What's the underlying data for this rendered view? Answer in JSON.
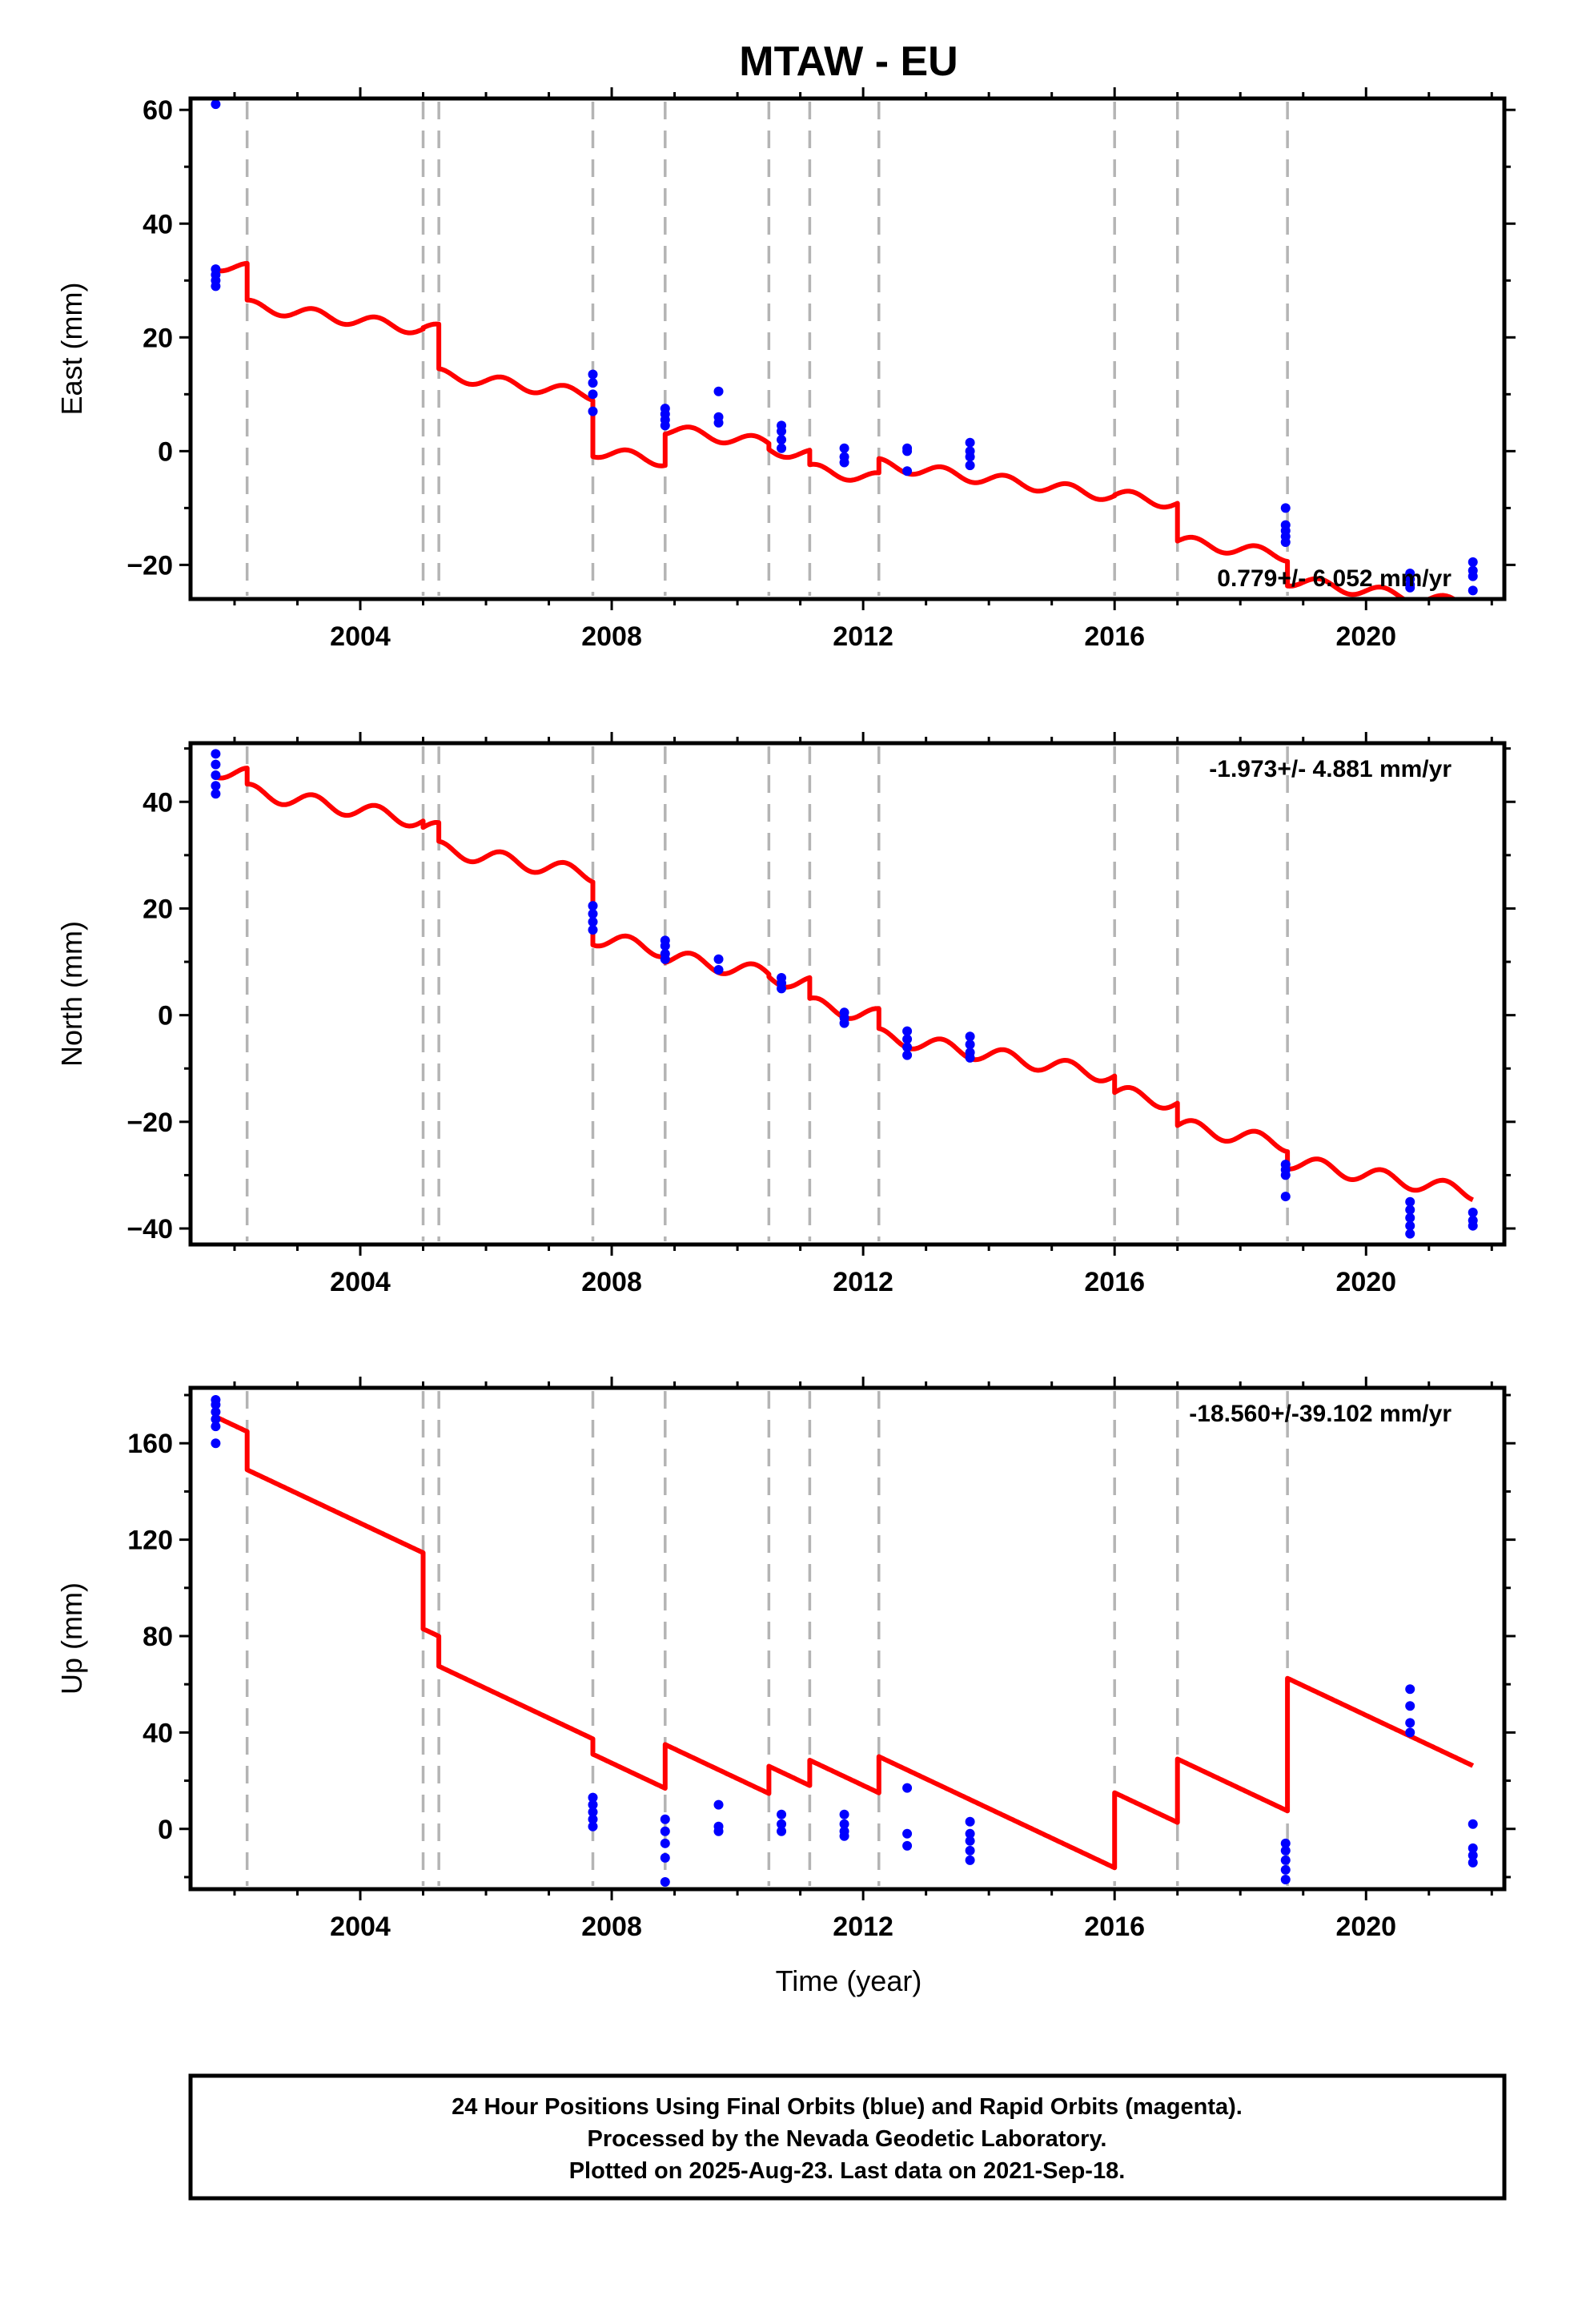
{
  "title": "MTAW - EU",
  "xlabel": "Time (year)",
  "footer": {
    "line1": "24 Hour Positions Using Final Orbits (blue) and Rapid Orbits (magenta).",
    "line2": "Processed by the Nevada Geodetic Laboratory.",
    "line3": "Plotted on 2025-Aug-23. Last data on 2021-Sep-18."
  },
  "colors": {
    "model": "#ff0000",
    "final_orbits": "#0000ff",
    "rapid_orbits": "#ff00ff",
    "breaks": "#b4b4b4"
  },
  "chart_data": [
    {
      "type": "scatter",
      "component": "east",
      "ylabel": "East (mm)",
      "rate": "0.779+/- 6.052 mm/yr",
      "rate_position": "bottom-right",
      "xlim": [
        2001.3,
        2022.2
      ],
      "ylim": [
        -26,
        62
      ],
      "xticks": [
        2004,
        2008,
        2012,
        2016,
        2020
      ],
      "yticks": [
        -20,
        0,
        20,
        40,
        60
      ],
      "ytick_labels": [
        "−20",
        "0",
        "20",
        "40",
        "60"
      ],
      "xtick_labels": [
        "2004",
        "2008",
        "2012",
        "2016",
        "2020"
      ],
      "breaks": [
        2002.2,
        2005.0,
        2005.25,
        2007.7,
        2008.85,
        2010.5,
        2011.15,
        2012.25,
        2016.0,
        2017.0,
        2018.75
      ],
      "points": [
        [
          2001.7,
          61
        ],
        [
          2001.7,
          32
        ],
        [
          2001.7,
          31
        ],
        [
          2001.7,
          30
        ],
        [
          2001.7,
          29
        ],
        [
          2007.7,
          13.5
        ],
        [
          2007.7,
          12
        ],
        [
          2007.7,
          10
        ],
        [
          2007.7,
          7
        ],
        [
          2008.85,
          7.5
        ],
        [
          2008.85,
          6.5
        ],
        [
          2008.85,
          5.5
        ],
        [
          2008.85,
          4.5
        ],
        [
          2009.7,
          10.5
        ],
        [
          2009.7,
          6
        ],
        [
          2009.7,
          5
        ],
        [
          2010.7,
          4.5
        ],
        [
          2010.7,
          3.5
        ],
        [
          2010.7,
          2
        ],
        [
          2010.7,
          0.5
        ],
        [
          2011.7,
          0.5
        ],
        [
          2011.7,
          -1
        ],
        [
          2011.7,
          -2
        ],
        [
          2012.7,
          0.5
        ],
        [
          2012.7,
          0
        ],
        [
          2012.7,
          -3.5
        ],
        [
          2013.7,
          1.5
        ],
        [
          2013.7,
          0
        ],
        [
          2013.7,
          -1
        ],
        [
          2013.7,
          -2.5
        ],
        [
          2018.72,
          -10
        ],
        [
          2018.72,
          -13
        ],
        [
          2018.72,
          -14
        ],
        [
          2018.72,
          -15
        ],
        [
          2018.72,
          -16
        ],
        [
          2020.7,
          -21.5
        ],
        [
          2020.7,
          -22.5
        ],
        [
          2020.7,
          -23.5
        ],
        [
          2020.7,
          -24
        ],
        [
          2021.7,
          -19.5
        ],
        [
          2021.7,
          -21
        ],
        [
          2021.7,
          -22
        ],
        [
          2021.7,
          -24.5
        ]
      ],
      "model": {
        "offsets": [
          32.8,
          25.6,
          21.7,
          13.5,
          0.0,
          3.8,
          0.3,
          -3.2,
          -2.3,
          -7.7,
          -15.8,
          -22.7
        ],
        "trend": -1.48,
        "seasonal_amp": 1.0
      }
    },
    {
      "type": "scatter",
      "component": "north",
      "ylabel": "North (mm)",
      "rate": "-1.973+/- 4.881 mm/yr",
      "rate_position": "top-right",
      "xlim": [
        2001.3,
        2022.2
      ],
      "ylim": [
        -43,
        51
      ],
      "xticks": [
        2004,
        2008,
        2012,
        2016,
        2020
      ],
      "yticks": [
        -40,
        -20,
        0,
        20,
        40
      ],
      "ytick_labels": [
        "−40",
        "−20",
        "0",
        "20",
        "40"
      ],
      "xtick_labels": [
        "2004",
        "2008",
        "2012",
        "2016",
        "2020"
      ],
      "breaks": [
        2002.2,
        2005.0,
        2005.25,
        2007.7,
        2008.85,
        2010.5,
        2011.15,
        2012.25,
        2016.0,
        2017.0,
        2018.75
      ],
      "points": [
        [
          2001.7,
          49
        ],
        [
          2001.7,
          47
        ],
        [
          2001.7,
          45
        ],
        [
          2001.7,
          43
        ],
        [
          2001.7,
          41.5
        ],
        [
          2007.7,
          20.5
        ],
        [
          2007.7,
          19
        ],
        [
          2007.7,
          17.5
        ],
        [
          2007.7,
          16
        ],
        [
          2008.85,
          14
        ],
        [
          2008.85,
          13
        ],
        [
          2008.85,
          11.5
        ],
        [
          2008.85,
          10.5
        ],
        [
          2009.7,
          10.5
        ],
        [
          2009.7,
          8.5
        ],
        [
          2010.7,
          7
        ],
        [
          2010.7,
          6
        ],
        [
          2010.7,
          5
        ],
        [
          2011.7,
          0.5
        ],
        [
          2011.7,
          -0.5
        ],
        [
          2011.7,
          -1.5
        ],
        [
          2012.7,
          -3
        ],
        [
          2012.7,
          -4.5
        ],
        [
          2012.7,
          -6
        ],
        [
          2012.7,
          -7.5
        ],
        [
          2013.7,
          -4
        ],
        [
          2013.7,
          -5.5
        ],
        [
          2013.7,
          -7
        ],
        [
          2013.7,
          -8
        ],
        [
          2018.72,
          -28
        ],
        [
          2018.72,
          -29
        ],
        [
          2018.72,
          -30
        ],
        [
          2018.72,
          -34
        ],
        [
          2020.7,
          -35
        ],
        [
          2020.7,
          -36.5
        ],
        [
          2020.7,
          -38
        ],
        [
          2020.7,
          -39.5
        ],
        [
          2020.7,
          -41
        ],
        [
          2021.7,
          -37
        ],
        [
          2021.7,
          -38.5
        ],
        [
          2021.7,
          -39.5
        ]
      ],
      "model": {
        "offsets": [
          46.0,
          42.0,
          35.2,
          31.2,
          14.5,
          11.0,
          7.2,
          2.0,
          -3.9,
          -14.5,
          -20.7,
          -27.4
        ],
        "trend": -2.0,
        "seasonal_amp": 1.4
      }
    },
    {
      "type": "scatter",
      "component": "up",
      "ylabel": "Up (mm)",
      "rate": "-18.560+/-39.102 mm/yr",
      "rate_position": "top-right",
      "xlim": [
        2001.3,
        2022.2
      ],
      "ylim": [
        -25,
        183
      ],
      "xticks": [
        2004,
        2008,
        2012,
        2016,
        2020
      ],
      "yticks": [
        0,
        40,
        80,
        120,
        160
      ],
      "ytick_labels": [
        "0",
        "40",
        "80",
        "120",
        "160"
      ],
      "xtick_labels": [
        "2004",
        "2008",
        "2012",
        "2016",
        "2020"
      ],
      "breaks": [
        2002.2,
        2005.0,
        2005.25,
        2007.7,
        2008.85,
        2010.5,
        2011.15,
        2012.25,
        2016.0,
        2017.0,
        2018.75
      ],
      "points": [
        [
          2001.7,
          178
        ],
        [
          2001.7,
          176
        ],
        [
          2001.7,
          173
        ],
        [
          2001.7,
          170
        ],
        [
          2001.7,
          167
        ],
        [
          2001.7,
          160
        ],
        [
          2007.7,
          13
        ],
        [
          2007.7,
          10
        ],
        [
          2007.7,
          7
        ],
        [
          2007.7,
          4
        ],
        [
          2007.7,
          1
        ],
        [
          2008.85,
          4
        ],
        [
          2008.85,
          -1
        ],
        [
          2008.85,
          -6
        ],
        [
          2008.85,
          -12
        ],
        [
          2008.85,
          -22
        ],
        [
          2009.7,
          10
        ],
        [
          2009.7,
          1
        ],
        [
          2009.7,
          -1
        ],
        [
          2010.7,
          6
        ],
        [
          2010.7,
          2
        ],
        [
          2010.7,
          -1
        ],
        [
          2011.7,
          6
        ],
        [
          2011.7,
          2
        ],
        [
          2011.7,
          -1
        ],
        [
          2011.7,
          -3
        ],
        [
          2012.7,
          17
        ],
        [
          2012.7,
          -2
        ],
        [
          2012.7,
          -7
        ],
        [
          2013.7,
          3
        ],
        [
          2013.7,
          -2
        ],
        [
          2013.7,
          -5
        ],
        [
          2013.7,
          -9
        ],
        [
          2013.7,
          -13
        ],
        [
          2018.72,
          -6
        ],
        [
          2018.72,
          -9
        ],
        [
          2018.72,
          -13
        ],
        [
          2018.72,
          -17
        ],
        [
          2018.72,
          -21
        ],
        [
          2020.7,
          58
        ],
        [
          2020.7,
          51
        ],
        [
          2020.7,
          44
        ],
        [
          2020.7,
          40
        ],
        [
          2021.7,
          2
        ],
        [
          2021.7,
          -8
        ],
        [
          2021.7,
          -11
        ],
        [
          2021.7,
          -14
        ]
      ],
      "model": {
        "offsets": [
          171.0,
          149.0,
          83.0,
          67.5,
          31.0,
          35.0,
          26.0,
          28.5,
          30.0,
          15.0,
          29.0,
          62.5
        ],
        "trend": -12.3,
        "seasonal_amp": 0
      }
    }
  ]
}
